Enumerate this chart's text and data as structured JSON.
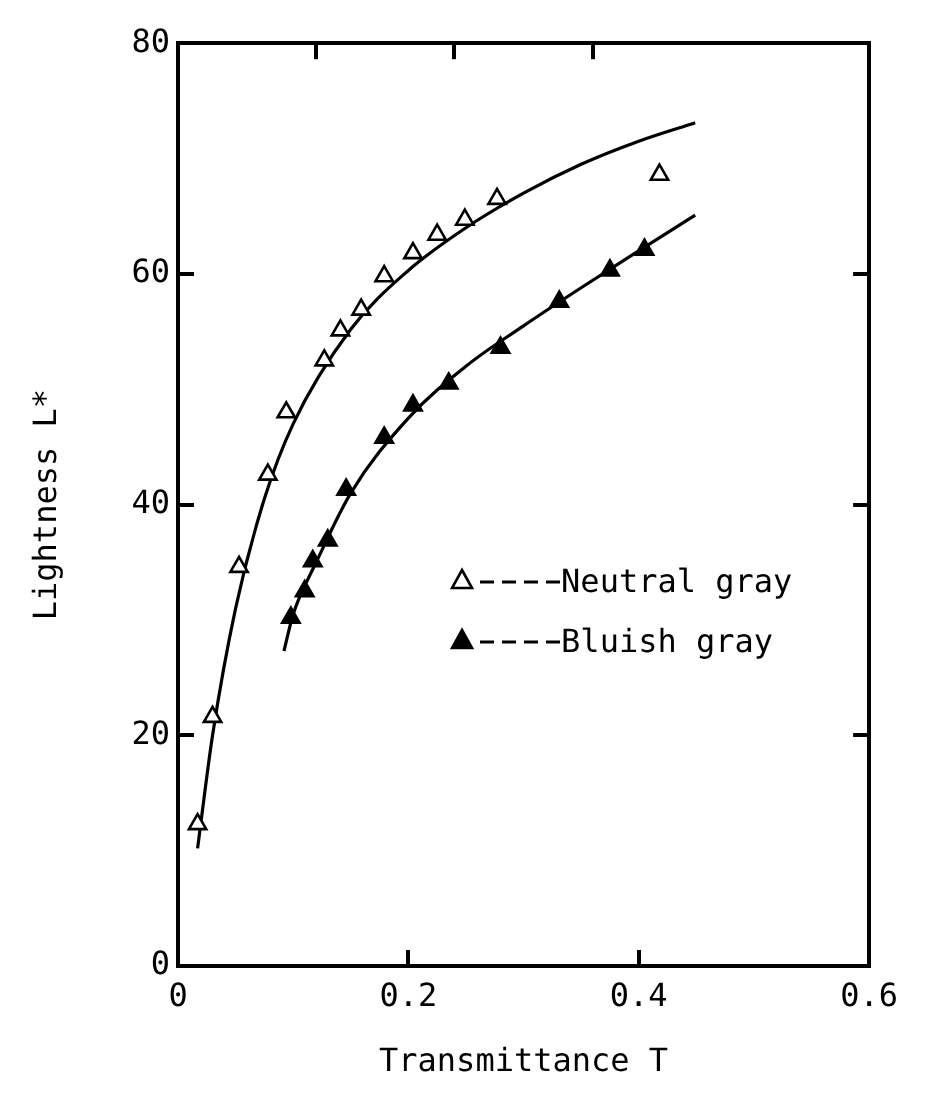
{
  "chart_data": {
    "type": "scatter",
    "xlabel": "Transmittance T",
    "ylabel": "Lightness L*",
    "xlim": [
      0,
      0.6
    ],
    "xticks": [
      0,
      0.2,
      0.4,
      0.6
    ],
    "ylim": [
      0,
      80
    ],
    "yticks": [
      0,
      20,
      40,
      60,
      80
    ],
    "grid": false,
    "legend": "right",
    "marker": "triangle",
    "series": [
      {
        "name": "Neutral gray",
        "color": "#000000",
        "x": [
          0.017,
          0.03,
          0.053,
          0.078,
          0.094,
          0.127,
          0.141,
          0.159,
          0.179,
          0.204,
          0.225,
          0.249,
          0.277,
          0.418
        ],
        "values": [
          12.3,
          21.6,
          34.6,
          42.6,
          48,
          52.5,
          55.1,
          56.9,
          59.8,
          61.8,
          63.4,
          64.7,
          66.5,
          68.6
        ]
      },
      {
        "name": "Bluish gray",
        "color": "#000000",
        "x": [
          0.098,
          0.11,
          0.117,
          0.13,
          0.146,
          0.179,
          0.204,
          0.235,
          0.28,
          0.331,
          0.375,
          0.405
        ],
        "values": [
          30.2,
          32.5,
          35.1,
          36.9,
          41.3,
          45.8,
          48.6,
          50.5,
          53.6,
          57.6,
          60.3,
          62.1
        ]
      },
      {
        "type": "line",
        "color": "#000000",
        "marker": "none",
        "x": [
          0.017,
          0.03,
          0.05,
          0.075,
          0.1,
          0.15,
          0.2,
          0.25,
          0.3,
          0.35,
          0.4,
          0.449
        ],
        "values": [
          10.2,
          20,
          31,
          40.5,
          47,
          55.2,
          60.3,
          64,
          67,
          69.5,
          71.5,
          73.1
        ]
      },
      {
        "type": "line",
        "color": "#000000",
        "marker": "none",
        "x": [
          0.092,
          0.1,
          0.12,
          0.15,
          0.2,
          0.25,
          0.3,
          0.35,
          0.4,
          0.449
        ],
        "values": [
          27.3,
          30.5,
          35,
          41,
          47.5,
          52,
          55.5,
          58.8,
          62,
          65.1
        ]
      }
    ]
  }
}
